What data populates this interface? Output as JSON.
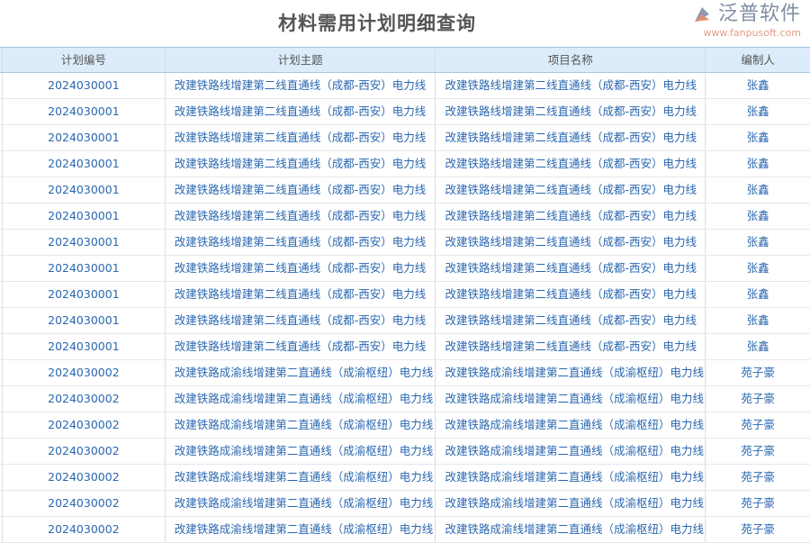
{
  "page": {
    "title": "材料需用计划明细查询"
  },
  "table": {
    "columns": [
      "计划编号",
      "计划主题",
      "项目名称",
      "编制人"
    ],
    "rows": [
      [
        "2024030001",
        "改建铁路线增建第二线直通线（成都-西安）电力线",
        "改建铁路线增建第二线直通线（成都-西安）电力线",
        "张鑫"
      ],
      [
        "2024030001",
        "改建铁路线增建第二线直通线（成都-西安）电力线",
        "改建铁路线增建第二线直通线（成都-西安）电力线",
        "张鑫"
      ],
      [
        "2024030001",
        "改建铁路线增建第二线直通线（成都-西安）电力线",
        "改建铁路线增建第二线直通线（成都-西安）电力线",
        "张鑫"
      ],
      [
        "2024030001",
        "改建铁路线增建第二线直通线（成都-西安）电力线",
        "改建铁路线增建第二线直通线（成都-西安）电力线",
        "张鑫"
      ],
      [
        "2024030001",
        "改建铁路线增建第二线直通线（成都-西安）电力线",
        "改建铁路线增建第二线直通线（成都-西安）电力线",
        "张鑫"
      ],
      [
        "2024030001",
        "改建铁路线增建第二线直通线（成都-西安）电力线",
        "改建铁路线增建第二线直通线（成都-西安）电力线",
        "张鑫"
      ],
      [
        "2024030001",
        "改建铁路线增建第二线直通线（成都-西安）电力线",
        "改建铁路线增建第二线直通线（成都-西安）电力线",
        "张鑫"
      ],
      [
        "2024030001",
        "改建铁路线增建第二线直通线（成都-西安）电力线",
        "改建铁路线增建第二线直通线（成都-西安）电力线",
        "张鑫"
      ],
      [
        "2024030001",
        "改建铁路线增建第二线直通线（成都-西安）电力线",
        "改建铁路线增建第二线直通线（成都-西安）电力线",
        "张鑫"
      ],
      [
        "2024030001",
        "改建铁路线增建第二线直通线（成都-西安）电力线",
        "改建铁路线增建第二线直通线（成都-西安）电力线",
        "张鑫"
      ],
      [
        "2024030001",
        "改建铁路线增建第二线直通线（成都-西安）电力线",
        "改建铁路线增建第二线直通线（成都-西安）电力线",
        "张鑫"
      ],
      [
        "2024030002",
        "改建铁路成渝线增建第二直通线（成渝枢纽）电力线",
        "改建铁路成渝线增建第二直通线（成渝枢纽）电力线",
        "苑子豪"
      ],
      [
        "2024030002",
        "改建铁路成渝线增建第二直通线（成渝枢纽）电力线",
        "改建铁路成渝线增建第二直通线（成渝枢纽）电力线",
        "苑子豪"
      ],
      [
        "2024030002",
        "改建铁路成渝线增建第二直通线（成渝枢纽）电力线",
        "改建铁路成渝线增建第二直通线（成渝枢纽）电力线",
        "苑子豪"
      ],
      [
        "2024030002",
        "改建铁路成渝线增建第二直通线（成渝枢纽）电力线",
        "改建铁路成渝线增建第二直通线（成渝枢纽）电力线",
        "苑子豪"
      ],
      [
        "2024030002",
        "改建铁路成渝线增建第二直通线（成渝枢纽）电力线",
        "改建铁路成渝线增建第二直通线（成渝枢纽）电力线",
        "苑子豪"
      ],
      [
        "2024030002",
        "改建铁路成渝线增建第二直通线（成渝枢纽）电力线",
        "改建铁路成渝线增建第二直通线（成渝枢纽）电力线",
        "苑子豪"
      ],
      [
        "2024030002",
        "改建铁路成渝线增建第二直通线（成渝枢纽）电力线",
        "改建铁路成渝线增建第二直通线（成渝枢纽）电力线",
        "苑子豪"
      ]
    ]
  },
  "watermark": {
    "name": "泛普软件",
    "url": "www.fanpusoft.com"
  }
}
